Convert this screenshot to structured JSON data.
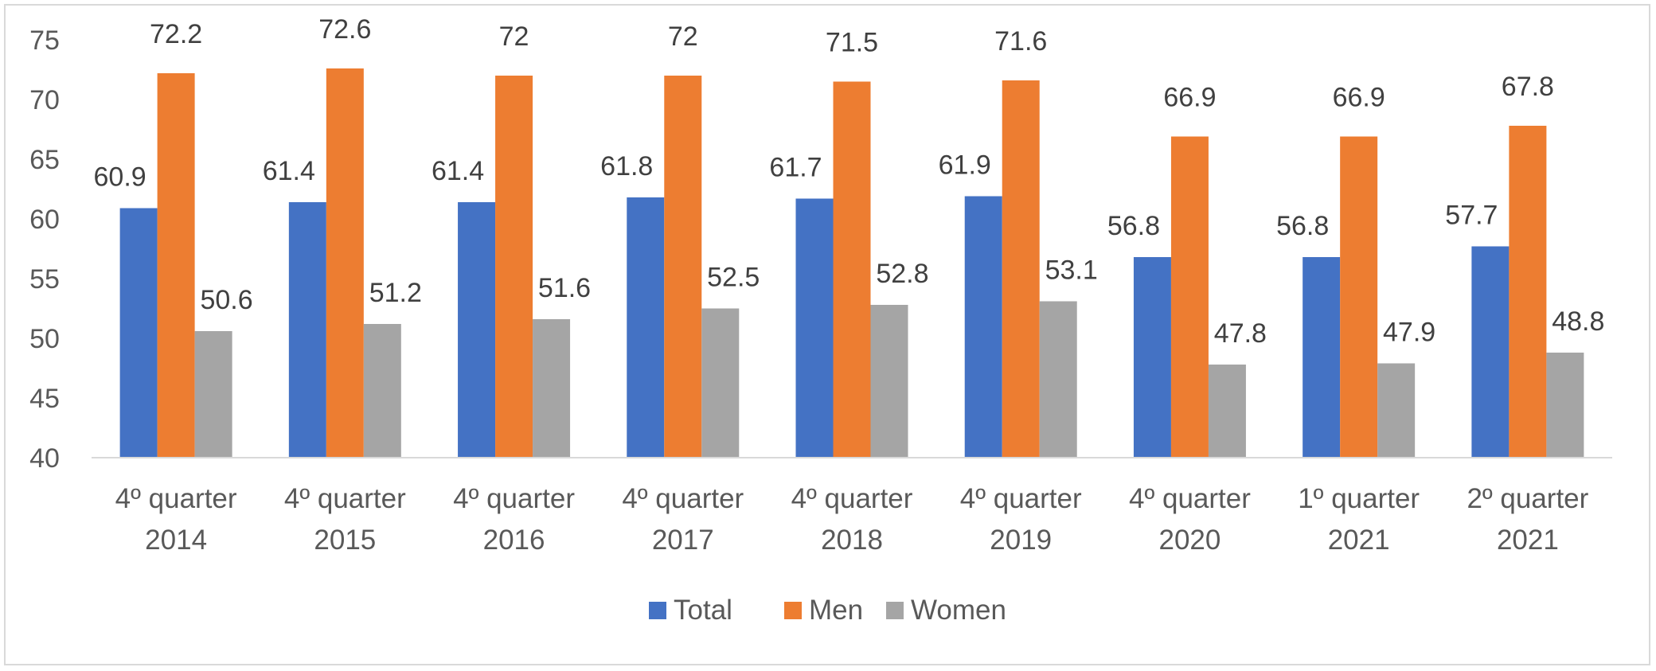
{
  "chart_data": {
    "type": "bar",
    "title": "",
    "xlabel": "",
    "ylabel": "",
    "ylim": [
      40,
      75
    ],
    "yticks": [
      40,
      45,
      50,
      55,
      60,
      65,
      70,
      75
    ],
    "grid": false,
    "legend_position": "bottom",
    "categories": [
      [
        "4º quarter",
        "2014"
      ],
      [
        "4º quarter",
        "2015"
      ],
      [
        "4º quarter",
        "2016"
      ],
      [
        "4º quarter",
        "2017"
      ],
      [
        "4º quarter",
        "2018"
      ],
      [
        "4º quarter",
        "2019"
      ],
      [
        "4º quarter",
        "2020"
      ],
      [
        "1º quarter",
        "2021"
      ],
      [
        "2º quarter",
        "2021"
      ]
    ],
    "series": [
      {
        "name": "Total",
        "color": "#4472c4",
        "values": [
          60.9,
          61.4,
          61.4,
          61.8,
          61.7,
          61.9,
          56.8,
          56.8,
          57.7
        ],
        "labels": [
          "60.9",
          "61.4",
          "61.4",
          "61.8",
          "61.7",
          "61.9",
          "56.8",
          "56.8",
          "57.7"
        ]
      },
      {
        "name": "Men",
        "color": "#ed7d31",
        "values": [
          72.2,
          72.6,
          72,
          72,
          71.5,
          71.6,
          66.9,
          66.9,
          67.8
        ],
        "labels": [
          "72.2",
          "72.6",
          "72",
          "72",
          "71.5",
          "71.6",
          "66.9",
          "66.9",
          "67.8"
        ]
      },
      {
        "name": "Women",
        "color": "#a5a5a5",
        "values": [
          50.6,
          51.2,
          51.6,
          52.5,
          52.8,
          53.1,
          47.8,
          47.9,
          48.8
        ],
        "labels": [
          "50.6",
          "51.2",
          "51.6",
          "52.5",
          "52.8",
          "53.1",
          "47.8",
          "47.9",
          "48.8"
        ]
      }
    ]
  }
}
